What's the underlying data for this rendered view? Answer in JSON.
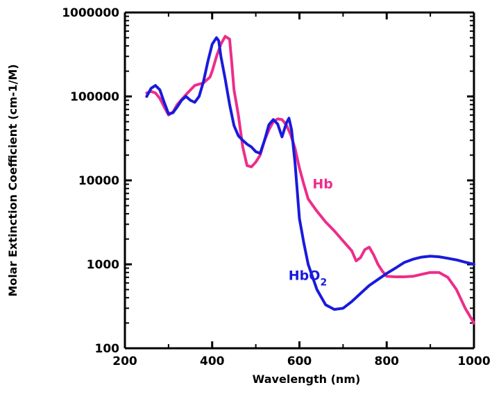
{
  "chart_data": {
    "type": "line",
    "xlabel": "Wavelength (nm)",
    "ylabel": "Molar Extinction Coefficient (cm-1/M)",
    "xlim": [
      200,
      1000
    ],
    "ylim": [
      100,
      1000000
    ],
    "yscale": "log",
    "grid": false,
    "x_ticks": [
      200,
      400,
      600,
      800,
      1000
    ],
    "x_tick_labels": [
      "200",
      "400",
      "600",
      "800",
      "1000"
    ],
    "y_ticks": [
      100,
      1000,
      10000,
      100000,
      1000000
    ],
    "y_tick_labels": [
      "100",
      "1000",
      "10000",
      "100000",
      "1000000"
    ],
    "series": [
      {
        "name": "Hb",
        "color": "#ee2d8a",
        "label_at": [
          630,
          8000
        ],
        "points": [
          [
            250,
            110000
          ],
          [
            260,
            115000
          ],
          [
            270,
            110000
          ],
          [
            280,
            95000
          ],
          [
            290,
            75000
          ],
          [
            300,
            60000
          ],
          [
            310,
            65000
          ],
          [
            320,
            80000
          ],
          [
            340,
            105000
          ],
          [
            360,
            135000
          ],
          [
            380,
            145000
          ],
          [
            395,
            170000
          ],
          [
            400,
            200000
          ],
          [
            410,
            300000
          ],
          [
            420,
            420000
          ],
          [
            430,
            520000
          ],
          [
            440,
            480000
          ],
          [
            445,
            250000
          ],
          [
            450,
            120000
          ],
          [
            460,
            60000
          ],
          [
            470,
            25000
          ],
          [
            480,
            15000
          ],
          [
            490,
            14500
          ],
          [
            500,
            16500
          ],
          [
            510,
            20000
          ],
          [
            520,
            30000
          ],
          [
            530,
            40000
          ],
          [
            540,
            50000
          ],
          [
            550,
            54000
          ],
          [
            560,
            53000
          ],
          [
            570,
            46000
          ],
          [
            580,
            35000
          ],
          [
            590,
            24000
          ],
          [
            600,
            14000
          ],
          [
            610,
            9000
          ],
          [
            620,
            6000
          ],
          [
            640,
            4300
          ],
          [
            660,
            3200
          ],
          [
            680,
            2500
          ],
          [
            700,
            1900
          ],
          [
            720,
            1450
          ],
          [
            730,
            1100
          ],
          [
            740,
            1200
          ],
          [
            750,
            1500
          ],
          [
            760,
            1600
          ],
          [
            770,
            1300
          ],
          [
            780,
            1000
          ],
          [
            790,
            830
          ],
          [
            800,
            720
          ],
          [
            820,
            710
          ],
          [
            840,
            710
          ],
          [
            860,
            720
          ],
          [
            880,
            760
          ],
          [
            900,
            800
          ],
          [
            920,
            800
          ],
          [
            940,
            700
          ],
          [
            960,
            500
          ],
          [
            980,
            300
          ],
          [
            1000,
            200
          ]
        ]
      },
      {
        "name": "HbO2",
        "color": "#1a1adc",
        "label_at": [
          575,
          650
        ],
        "points": [
          [
            250,
            100000
          ],
          [
            260,
            125000
          ],
          [
            270,
            135000
          ],
          [
            280,
            120000
          ],
          [
            290,
            85000
          ],
          [
            300,
            62000
          ],
          [
            310,
            64000
          ],
          [
            320,
            75000
          ],
          [
            330,
            90000
          ],
          [
            340,
            100000
          ],
          [
            350,
            90000
          ],
          [
            360,
            85000
          ],
          [
            370,
            100000
          ],
          [
            380,
            150000
          ],
          [
            390,
            260000
          ],
          [
            400,
            420000
          ],
          [
            410,
            500000
          ],
          [
            415,
            460000
          ],
          [
            420,
            300000
          ],
          [
            430,
            160000
          ],
          [
            440,
            80000
          ],
          [
            450,
            45000
          ],
          [
            460,
            34000
          ],
          [
            470,
            30000
          ],
          [
            480,
            27000
          ],
          [
            490,
            25000
          ],
          [
            500,
            22000
          ],
          [
            510,
            21000
          ],
          [
            520,
            30000
          ],
          [
            530,
            46000
          ],
          [
            540,
            53000
          ],
          [
            550,
            47000
          ],
          [
            560,
            33000
          ],
          [
            570,
            48000
          ],
          [
            576,
            55000
          ],
          [
            582,
            40000
          ],
          [
            590,
            16000
          ],
          [
            600,
            3500
          ],
          [
            610,
            1800
          ],
          [
            620,
            1000
          ],
          [
            640,
            500
          ],
          [
            660,
            330
          ],
          [
            680,
            290
          ],
          [
            700,
            300
          ],
          [
            720,
            360
          ],
          [
            740,
            450
          ],
          [
            760,
            560
          ],
          [
            780,
            660
          ],
          [
            800,
            780
          ],
          [
            820,
            900
          ],
          [
            840,
            1050
          ],
          [
            860,
            1150
          ],
          [
            880,
            1220
          ],
          [
            900,
            1250
          ],
          [
            920,
            1230
          ],
          [
            940,
            1180
          ],
          [
            960,
            1130
          ],
          [
            980,
            1060
          ],
          [
            1000,
            1000
          ]
        ]
      }
    ]
  }
}
